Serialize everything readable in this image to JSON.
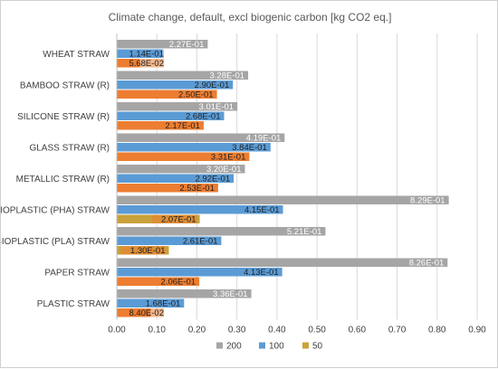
{
  "chart_data": {
    "type": "bar",
    "orientation": "horizontal",
    "title": "Climate change, default, excl biogenic carbon [kg CO2 eq.]",
    "categories": [
      "WHEAT STRAW",
      "BAMBOO STRAW (R)",
      "SILICONE STRAW (R)",
      "GLASS STRAW (R)",
      "METALLIC STRAW (R)",
      "BIOPLASTIC (PHA) STRAW",
      "BIOPLASTIC (PLA) STRAW",
      "PAPER STRAW",
      "PLASTIC STRAW"
    ],
    "series": [
      {
        "name": "200",
        "color": "#a5a5a5",
        "values": [
          0.227,
          0.328,
          0.301,
          0.419,
          0.32,
          0.829,
          0.521,
          0.826,
          0.336
        ],
        "labels": [
          "2.27E-01",
          "3.28E-01",
          "3.01E-01",
          "4.19E-01",
          "3.20E-01",
          "8.29E-01",
          "5.21E-01",
          "8.26E-01",
          "3.36E-01"
        ]
      },
      {
        "name": "100",
        "color": "#5b9bd5",
        "values": [
          0.114,
          0.29,
          0.268,
          0.384,
          0.292,
          0.415,
          0.261,
          0.413,
          0.168
        ],
        "labels": [
          "1.14E-01",
          "2.90E-01",
          "2.68E-01",
          "3.84E-01",
          "2.92E-01",
          "4.15E-01",
          "2.61E-01",
          "4.13E-01",
          "1.68E-01"
        ]
      },
      {
        "name": "50",
        "colors": [
          "#ed7d31",
          "#ed7d31",
          "#ed7d31",
          "#ed7d31",
          "#ed7d31",
          "#c9a13a",
          "#c9a13a",
          "#ed7d31",
          "#ed7d31"
        ],
        "values": [
          0.0568,
          0.25,
          0.217,
          0.331,
          0.253,
          0.207,
          0.13,
          0.206,
          0.084
        ],
        "labels": [
          "5.68E-02",
          "2.50E-01",
          "2.17E-01",
          "3.31E-01",
          "2.53E-01",
          "2.07E-01",
          "1.30E-01",
          "2.06E-01",
          "8.40E-02"
        ]
      }
    ],
    "legend_series_colors": [
      "#a5a5a5",
      "#5b9bd5",
      "#c9a13a"
    ],
    "xlim": [
      0,
      0.9
    ],
    "xticks": [
      "0.00",
      "0.10",
      "0.20",
      "0.30",
      "0.40",
      "0.50",
      "0.60",
      "0.70",
      "0.80",
      "0.90"
    ],
    "grid": "vertical",
    "legend_position": "bottom"
  }
}
